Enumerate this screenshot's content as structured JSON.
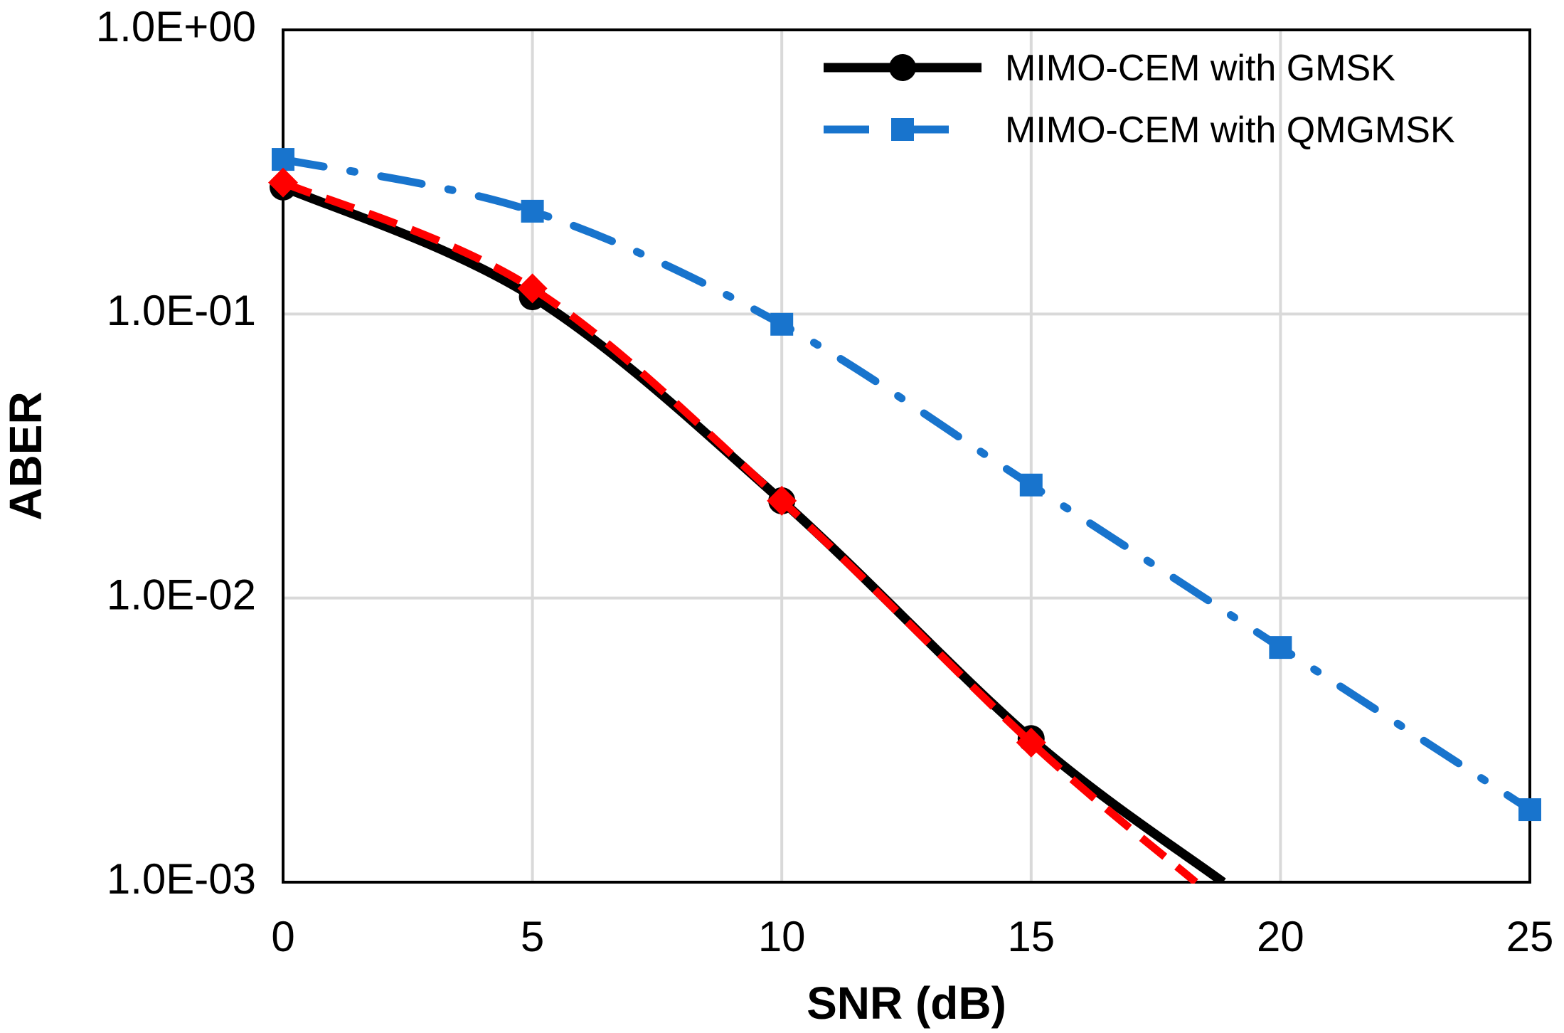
{
  "chart_data": {
    "type": "line",
    "title": "",
    "xlabel": "SNR (dB)",
    "ylabel": "ABER",
    "xlim": [
      0,
      25
    ],
    "ylim": [
      0.001,
      1
    ],
    "yscale": "log",
    "grid": true,
    "legend_position": "top-right",
    "x_ticks": [
      "0",
      "5",
      "10",
      "15",
      "20",
      "25"
    ],
    "x_tick_values": [
      0,
      5,
      10,
      15,
      20,
      25
    ],
    "y_ticks": [
      "1.0E+00",
      "1.0E-01",
      "1.0E-02",
      "1.0E-03"
    ],
    "y_tick_values": [
      1,
      0.1,
      0.01,
      0.001
    ],
    "series": [
      {
        "name": "MIMO-CEM with GMSK",
        "color": "#000000",
        "line_style": "solid",
        "marker": "circle",
        "in_legend": true,
        "x": [
          0,
          5,
          10,
          15,
          18.85
        ],
        "y": [
          0.28,
          0.115,
          0.022,
          0.0032,
          0.001
        ]
      },
      {
        "name": "MIMO-CEM with QMGMSK",
        "color": "#1874CD",
        "line_style": "dash-dot",
        "marker": "square",
        "in_legend": true,
        "x": [
          0,
          5,
          10,
          15,
          20,
          25
        ],
        "y": [
          0.35,
          0.23,
          0.092,
          0.025,
          0.0067,
          0.0018
        ]
      },
      {
        "name": "",
        "color": "#FF0000",
        "line_style": "dashed",
        "marker": "diamond",
        "in_legend": false,
        "x": [
          0,
          5,
          10,
          15,
          18.3
        ],
        "y": [
          0.29,
          0.123,
          0.022,
          0.0031,
          0.001
        ]
      }
    ]
  }
}
